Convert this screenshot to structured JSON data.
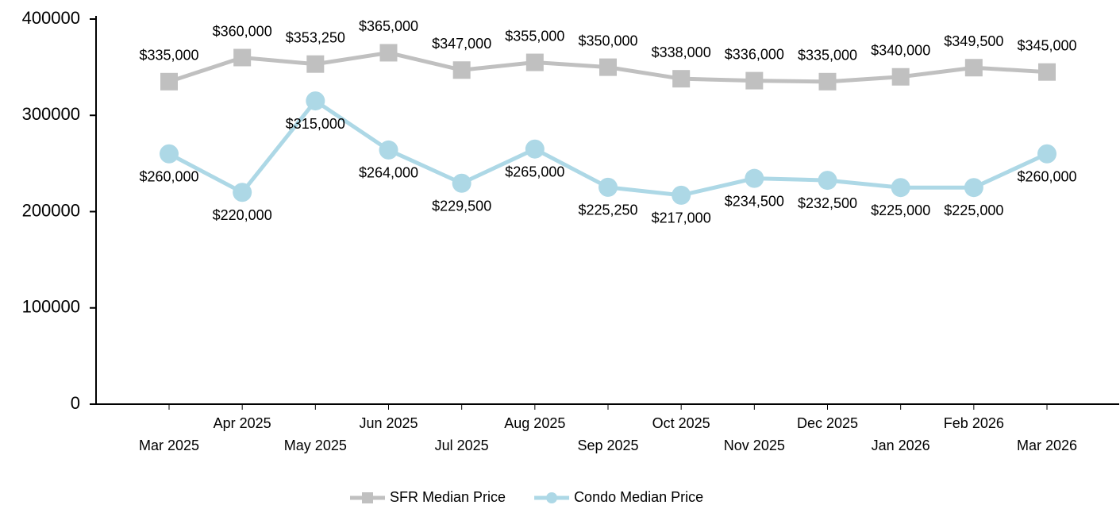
{
  "chart_data": {
    "type": "line",
    "categories": [
      "Mar 2025",
      "Apr 2025",
      "May 2025",
      "Jun 2025",
      "Jul 2025",
      "Aug 2025",
      "Sep 2025",
      "Oct 2025",
      "Nov 2025",
      "Dec 2025",
      "Jan 2026",
      "Feb 2026",
      "Mar 2026"
    ],
    "series": [
      {
        "name": "SFR Median Price",
        "color": "#c0c0c0",
        "marker": "square",
        "values": [
          335000,
          360000,
          353250,
          365000,
          347000,
          355000,
          350000,
          338000,
          336000,
          335000,
          340000,
          349500,
          345000
        ],
        "value_labels": [
          "$335,000",
          "$360,000",
          "$353,250",
          "$365,000",
          "$347,000",
          "$355,000",
          "$350,000",
          "$338,000",
          "$336,000",
          "$335,000",
          "$340,000",
          "$349,500",
          "$345,000"
        ]
      },
      {
        "name": "Condo Median Price",
        "color": "#add8e6",
        "marker": "circle",
        "values": [
          260000,
          220000,
          315000,
          264000,
          229500,
          265000,
          225250,
          217000,
          234500,
          232500,
          225000,
          225000,
          260000
        ],
        "value_labels": [
          "$260,000",
          "$220,000",
          "$315,000",
          "$264,000",
          "$229,500",
          "$265,000",
          "$225,250",
          "$217,000",
          "$234,500",
          "$232,500",
          "$225,000",
          "$225,000",
          "$260,000"
        ]
      }
    ],
    "ylim": [
      0,
      400000
    ],
    "yticks": [
      0,
      100000,
      200000,
      300000,
      400000
    ],
    "legend": "bottom"
  }
}
